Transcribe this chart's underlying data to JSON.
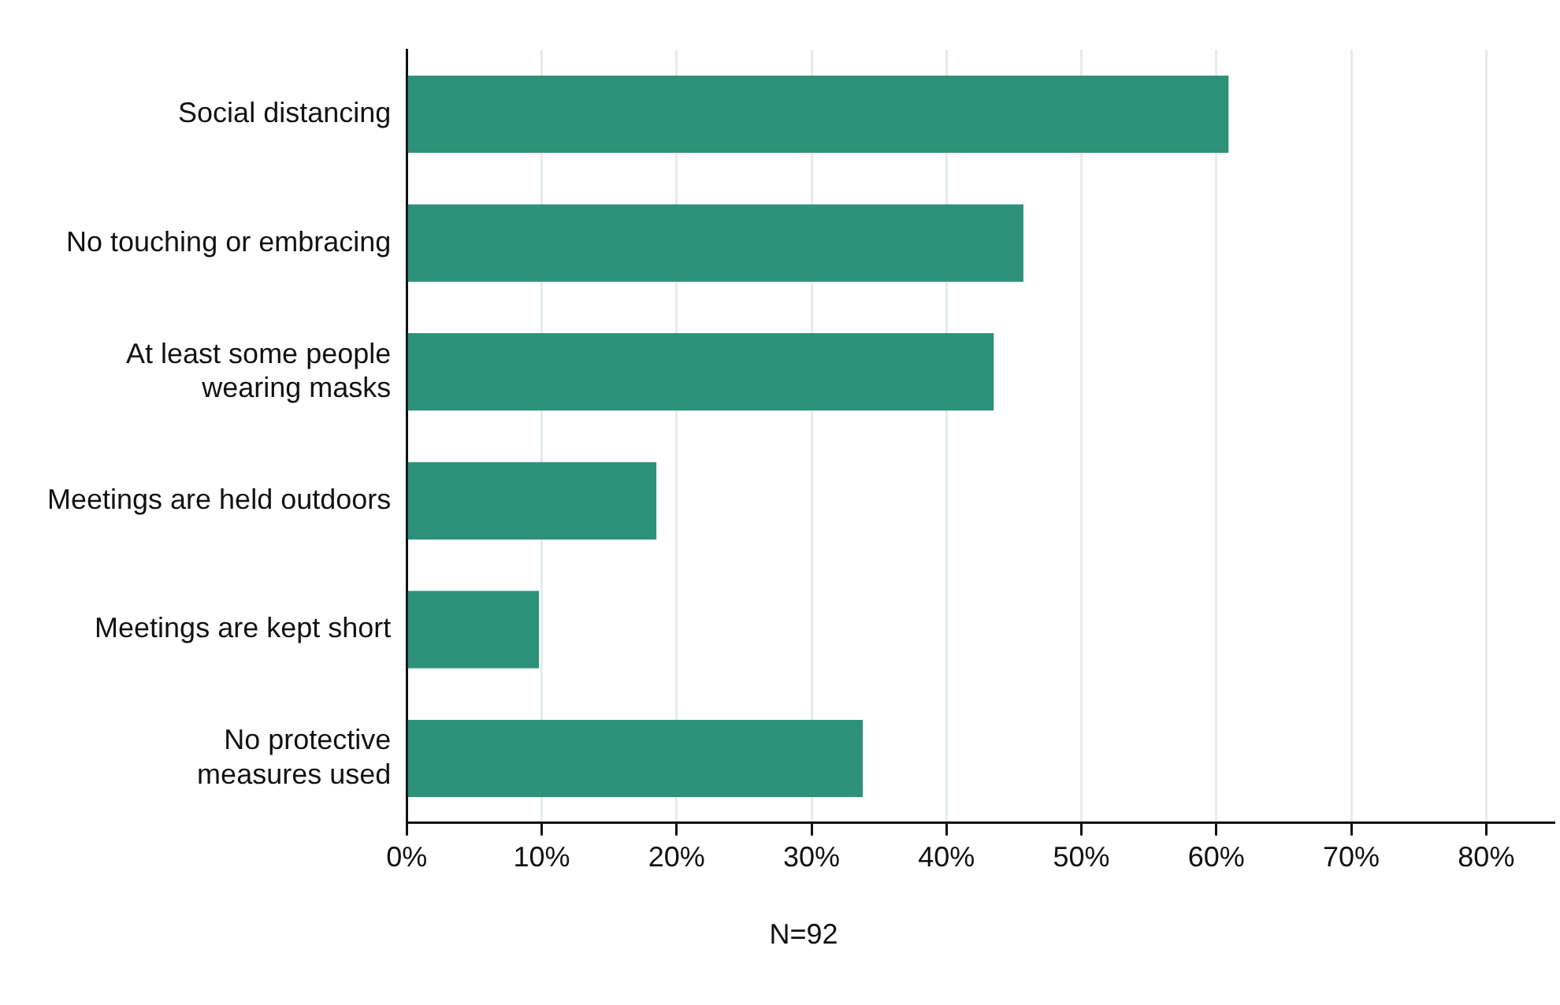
{
  "chart_data": {
    "type": "bar",
    "orientation": "horizontal",
    "categories": [
      "Social distancing",
      "No touching or embracing",
      "At least some people\nwearing masks",
      "Meetings are held outdoors",
      "Meetings are kept short",
      "No protective\nmeasures used"
    ],
    "values": [
      60.9,
      45.7,
      43.5,
      18.5,
      9.8,
      33.8
    ],
    "color": "#2e917a",
    "xlim": [
      0,
      85
    ],
    "xticks": [
      {
        "value": 0,
        "label": "0%"
      },
      {
        "value": 10,
        "label": "10%"
      },
      {
        "value": 20,
        "label": "20%"
      },
      {
        "value": 30,
        "label": "30%"
      },
      {
        "value": 40,
        "label": "40%"
      },
      {
        "value": 50,
        "label": "50%"
      },
      {
        "value": 60,
        "label": "60%"
      },
      {
        "value": 70,
        "label": "70%"
      },
      {
        "value": 80,
        "label": "80%"
      }
    ],
    "grid": "x",
    "legend": false,
    "annotations": [
      "N=92"
    ]
  }
}
